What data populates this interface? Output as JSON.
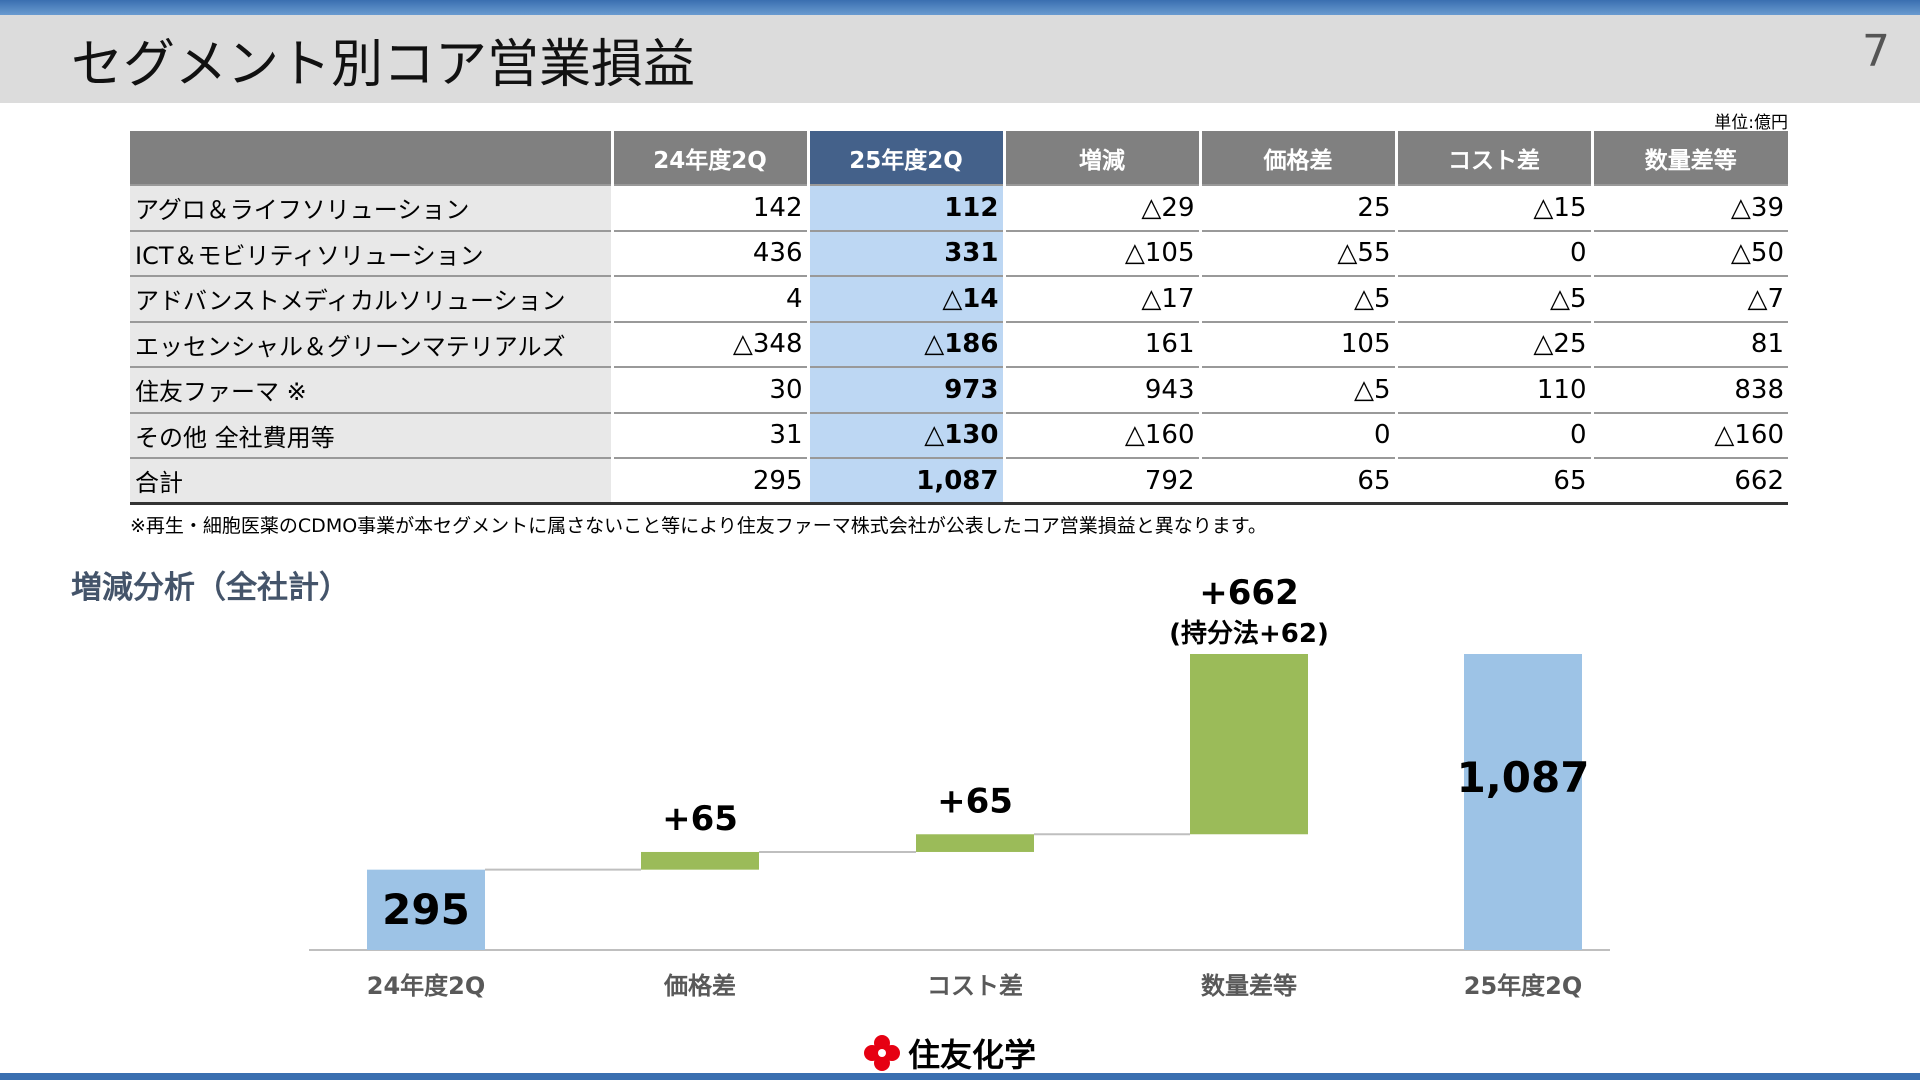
{
  "header": {
    "title": "セグメント別コア営業損益",
    "page_number": "7"
  },
  "table": {
    "unit": "単位:億円",
    "columns": [
      "",
      "24年度2Q",
      "25年度2Q",
      "増減",
      "価格差",
      "コスト差",
      "数量差等"
    ],
    "rows": [
      [
        "アグロ＆ライフソリューション",
        "142",
        "112",
        "△29",
        "25",
        "△15",
        "△39"
      ],
      [
        "ICT＆モビリティソリューション",
        "436",
        "331",
        "△105",
        "△55",
        "0",
        "△50"
      ],
      [
        "アドバンストメディカルソリューション",
        "4",
        "△14",
        "△17",
        "△5",
        "△5",
        "△7"
      ],
      [
        "エッセンシャル＆グリーンマテリアルズ",
        "△348",
        "△186",
        "161",
        "105",
        "△25",
        "81"
      ],
      [
        "住友ファーマ ※",
        "30",
        "973",
        "943",
        "△5",
        "110",
        "838"
      ],
      [
        "その他 全社費用等",
        "31",
        "△130",
        "△160",
        "0",
        "0",
        "△160"
      ],
      [
        "合計",
        "295",
        "1,087",
        "792",
        "65",
        "65",
        "662"
      ]
    ],
    "footnote": "※再生・細胞医薬のCDMO事業が本セグメントに属さないこと等により住友ファーマ株式会社が公表したコア営業損益と異なります。"
  },
  "section_title": "増減分析（全社計）",
  "chart_data": {
    "type": "waterfall",
    "categories": [
      "24年度2Q",
      "価格差",
      "コスト差",
      "数量差等",
      "25年度2Q"
    ],
    "values": [
      295,
      65,
      65,
      662,
      1087
    ],
    "kinds": [
      "total",
      "delta",
      "delta",
      "delta",
      "total"
    ],
    "labels": [
      "295",
      "+65",
      "+65",
      "+662",
      "1,087"
    ],
    "sub_labels": [
      "",
      "",
      "",
      "(持分法+62)",
      ""
    ],
    "colors": {
      "total": "#9dc3e6",
      "delta": "#9bbb59"
    },
    "ylim": [
      0,
      1087
    ]
  },
  "logo": {
    "text": "住友化学",
    "color": "#e60012"
  }
}
